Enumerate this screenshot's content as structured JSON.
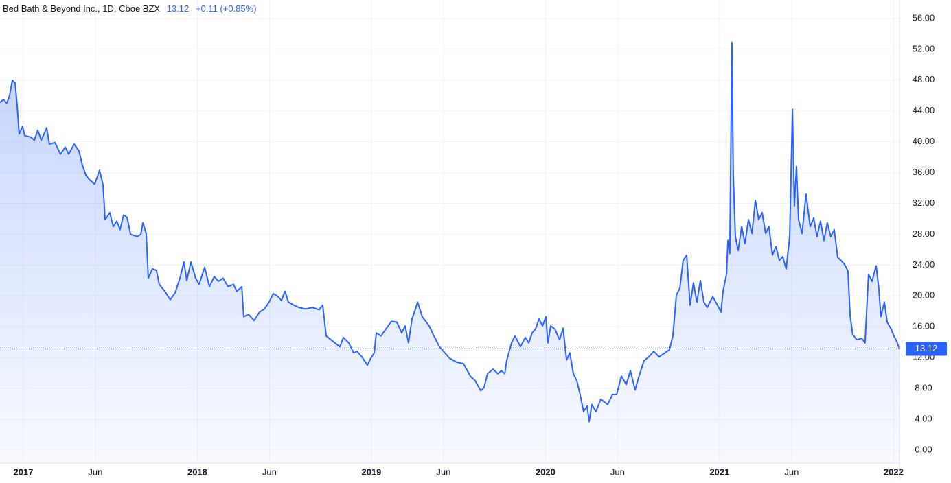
{
  "chart_data": {
    "type": "line",
    "title": "Bed Bath & Beyond Inc., 1D, Cboe BZX",
    "price_change": "+0.11 (+0.85%)",
    "x": [
      2016.866,
      2016.886,
      2016.905,
      2016.921,
      2016.937,
      2016.953,
      2016.965,
      2016.976,
      2016.996,
      2017.008,
      2017.044,
      2017.063,
      2017.083,
      2017.103,
      2017.134,
      2017.15,
      2017.182,
      2017.213,
      2017.241,
      2017.261,
      2017.292,
      2017.32,
      2017.339,
      2017.359,
      2017.379,
      2017.41,
      2017.438,
      2017.458,
      2017.47,
      2017.497,
      2017.517,
      2017.537,
      2017.556,
      2017.576,
      2017.596,
      2017.616,
      2017.655,
      2017.675,
      2017.687,
      2017.706,
      2017.718,
      2017.742,
      2017.765,
      2017.781,
      2017.813,
      2017.844,
      2017.872,
      2017.9,
      2017.923,
      2017.939,
      2017.963,
      2017.99,
      2018.01,
      2018.042,
      2018.069,
      2018.097,
      2018.121,
      2018.148,
      2018.176,
      2018.207,
      2018.227,
      2018.255,
      2018.266,
      2018.294,
      2018.326,
      2018.357,
      2018.385,
      2018.412,
      2018.436,
      2018.464,
      2018.483,
      2018.503,
      2018.523,
      2018.554,
      2018.582,
      2018.622,
      2018.661,
      2018.7,
      2018.72,
      2018.74,
      2018.779,
      2018.819,
      2018.839,
      2018.87,
      2018.898,
      2018.917,
      2018.945,
      2018.977,
      2018.996,
      2019.016,
      2019.028,
      2019.055,
      2019.083,
      2019.115,
      2019.146,
      2019.174,
      2019.194,
      2019.213,
      2019.233,
      2019.253,
      2019.265,
      2019.292,
      2019.332,
      2019.359,
      2019.391,
      2019.422,
      2019.45,
      2019.489,
      2019.529,
      2019.568,
      2019.596,
      2019.628,
      2019.647,
      2019.667,
      2019.699,
      2019.726,
      2019.746,
      2019.766,
      2019.777,
      2019.805,
      2019.825,
      2019.856,
      2019.884,
      2019.904,
      2019.923,
      2019.943,
      2019.963,
      2019.983,
      2020.002,
      2020.014,
      2020.03,
      2020.054,
      2020.081,
      2020.101,
      2020.121,
      2020.14,
      2020.16,
      2020.18,
      2020.199,
      2020.219,
      2020.239,
      2020.251,
      2020.266,
      2020.29,
      2020.318,
      2020.357,
      2020.385,
      2020.409,
      2020.436,
      2020.464,
      2020.488,
      2020.515,
      2020.535,
      2020.566,
      2020.594,
      2020.622,
      2020.653,
      2020.685,
      2020.712,
      2020.732,
      2020.752,
      2020.772,
      2020.791,
      2020.811,
      2020.831,
      2020.85,
      2020.87,
      2020.89,
      2020.91,
      2020.929,
      2020.961,
      2020.988,
      2021.008,
      2021.02,
      2021.04,
      2021.048,
      2021.059,
      2021.071,
      2021.079,
      2021.091,
      2021.107,
      2021.127,
      2021.146,
      2021.166,
      2021.186,
      2021.206,
      2021.225,
      2021.245,
      2021.265,
      2021.284,
      2021.304,
      2021.324,
      2021.344,
      2021.363,
      2021.383,
      2021.403,
      2021.419,
      2021.43,
      2021.442,
      2021.454,
      2021.474,
      2021.497,
      2021.521,
      2021.541,
      2021.56,
      2021.58,
      2021.6,
      2021.619,
      2021.639,
      2021.659,
      2021.679,
      2021.698,
      2021.718,
      2021.738,
      2021.75,
      2021.765,
      2021.789,
      2021.817,
      2021.836,
      2021.856,
      2021.876,
      2021.9,
      2021.915,
      2021.927,
      2021.947,
      2021.963,
      2021.986,
      2022.002,
      2022.018,
      2022.034
    ],
    "series": [
      {
        "color": "#2962ff",
        "values": [
          45.1,
          45.5,
          45,
          46,
          48,
          47.6,
          44.6,
          41,
          42,
          40.8,
          40.6,
          40.2,
          41.5,
          40.2,
          41.8,
          39.7,
          39.9,
          38.4,
          39.3,
          38.4,
          39.7,
          38.8,
          37,
          35.7,
          35.1,
          34.5,
          36.3,
          34.4,
          29.9,
          30.8,
          29,
          29.7,
          28.6,
          30.5,
          30.2,
          28,
          27.7,
          28,
          29.5,
          28.1,
          22.3,
          23.5,
          23.3,
          21.5,
          20.6,
          19.5,
          20.4,
          22.3,
          24.4,
          22,
          24.4,
          22.3,
          21.5,
          23.7,
          21.2,
          22.5,
          21.9,
          22.3,
          21.2,
          21.5,
          20.6,
          21.2,
          17.3,
          17.6,
          16.8,
          17.9,
          18.3,
          19.2,
          20.3,
          19.9,
          19.4,
          20.6,
          19.2,
          18.8,
          18.5,
          18.3,
          18.5,
          18.2,
          18.8,
          14.8,
          14.1,
          13.4,
          14.6,
          13.9,
          12.6,
          12.8,
          12.1,
          11,
          11.9,
          12.6,
          15.2,
          14.8,
          15.7,
          16.7,
          16.6,
          15.2,
          16.1,
          13.9,
          17,
          18.3,
          19.2,
          17.3,
          16.1,
          14.8,
          13.4,
          12.6,
          11.9,
          11.4,
          11.2,
          9.6,
          9,
          7.7,
          8.1,
          9.9,
          10.5,
          9.9,
          10.3,
          9.9,
          11.6,
          13.9,
          14.8,
          13.4,
          14.6,
          13.9,
          15.2,
          15.7,
          17,
          16.1,
          17.3,
          13.9,
          16.1,
          15.7,
          14.3,
          15.8,
          11.7,
          12.6,
          9.9,
          9,
          7.2,
          5,
          5.7,
          3.7,
          5.9,
          5,
          6.6,
          5.9,
          7.2,
          7.2,
          9.6,
          8.5,
          10.3,
          7.8,
          9.4,
          11.6,
          12.1,
          12.8,
          12.1,
          12.6,
          13,
          14.8,
          20.1,
          21,
          24.6,
          25.3,
          18.8,
          21.7,
          19.2,
          22,
          19.2,
          18.5,
          19.9,
          18.8,
          17.9,
          20.6,
          22.8,
          27.2,
          25.5,
          52.9,
          35.7,
          27.7,
          25.9,
          29,
          26.8,
          29.9,
          28.1,
          32.4,
          29.9,
          30.8,
          28.1,
          29,
          25.3,
          26.4,
          24.6,
          25.1,
          23.5,
          27.7,
          44.2,
          31.7,
          36.8,
          29.9,
          28.1,
          33.2,
          29,
          30.1,
          27.7,
          29.7,
          27.2,
          29.5,
          27.7,
          28.6,
          25,
          24.6,
          24.1,
          23.2,
          17.5,
          15,
          14.3,
          14.5,
          13.9,
          22.8,
          21.9,
          23.9,
          21,
          17.3,
          19.2,
          16.6,
          15.7,
          14.8,
          14.1,
          13.12
        ]
      }
    ],
    "xlim": [
      2016.866,
      2022.034
    ],
    "xticks": [
      2017,
      {
        "value": 2017.414,
        "label": "Jun"
      },
      2018,
      {
        "value": 2018.414,
        "label": "Jun"
      },
      2019,
      {
        "value": 2019.414,
        "label": "Jun"
      },
      2020,
      {
        "value": 2020.414,
        "label": "Jun"
      },
      2021,
      {
        "value": 2021.414,
        "label": "Jun"
      },
      2022
    ],
    "ylim": [
      -1.7,
      58.4
    ],
    "yticks": [
      {
        "value": 0,
        "label": "0.00"
      },
      {
        "value": 4,
        "label": "4.00"
      },
      {
        "value": 8,
        "label": "8.00"
      },
      {
        "value": 12,
        "label": "12.00"
      },
      {
        "value": 16,
        "label": "16.00"
      },
      {
        "value": 20,
        "label": "20.00"
      },
      {
        "value": 24,
        "label": "24.00"
      },
      {
        "value": 28,
        "label": "28.00"
      },
      {
        "value": 32,
        "label": "32.00"
      },
      {
        "value": 36,
        "label": "36.00"
      },
      {
        "value": 40,
        "label": "40.00"
      },
      {
        "value": 44,
        "label": "44.00"
      },
      {
        "value": 48,
        "label": "48.00"
      },
      {
        "value": 52,
        "label": "52.00"
      },
      {
        "value": 56,
        "label": "56.00"
      }
    ],
    "grid": true
  }
}
